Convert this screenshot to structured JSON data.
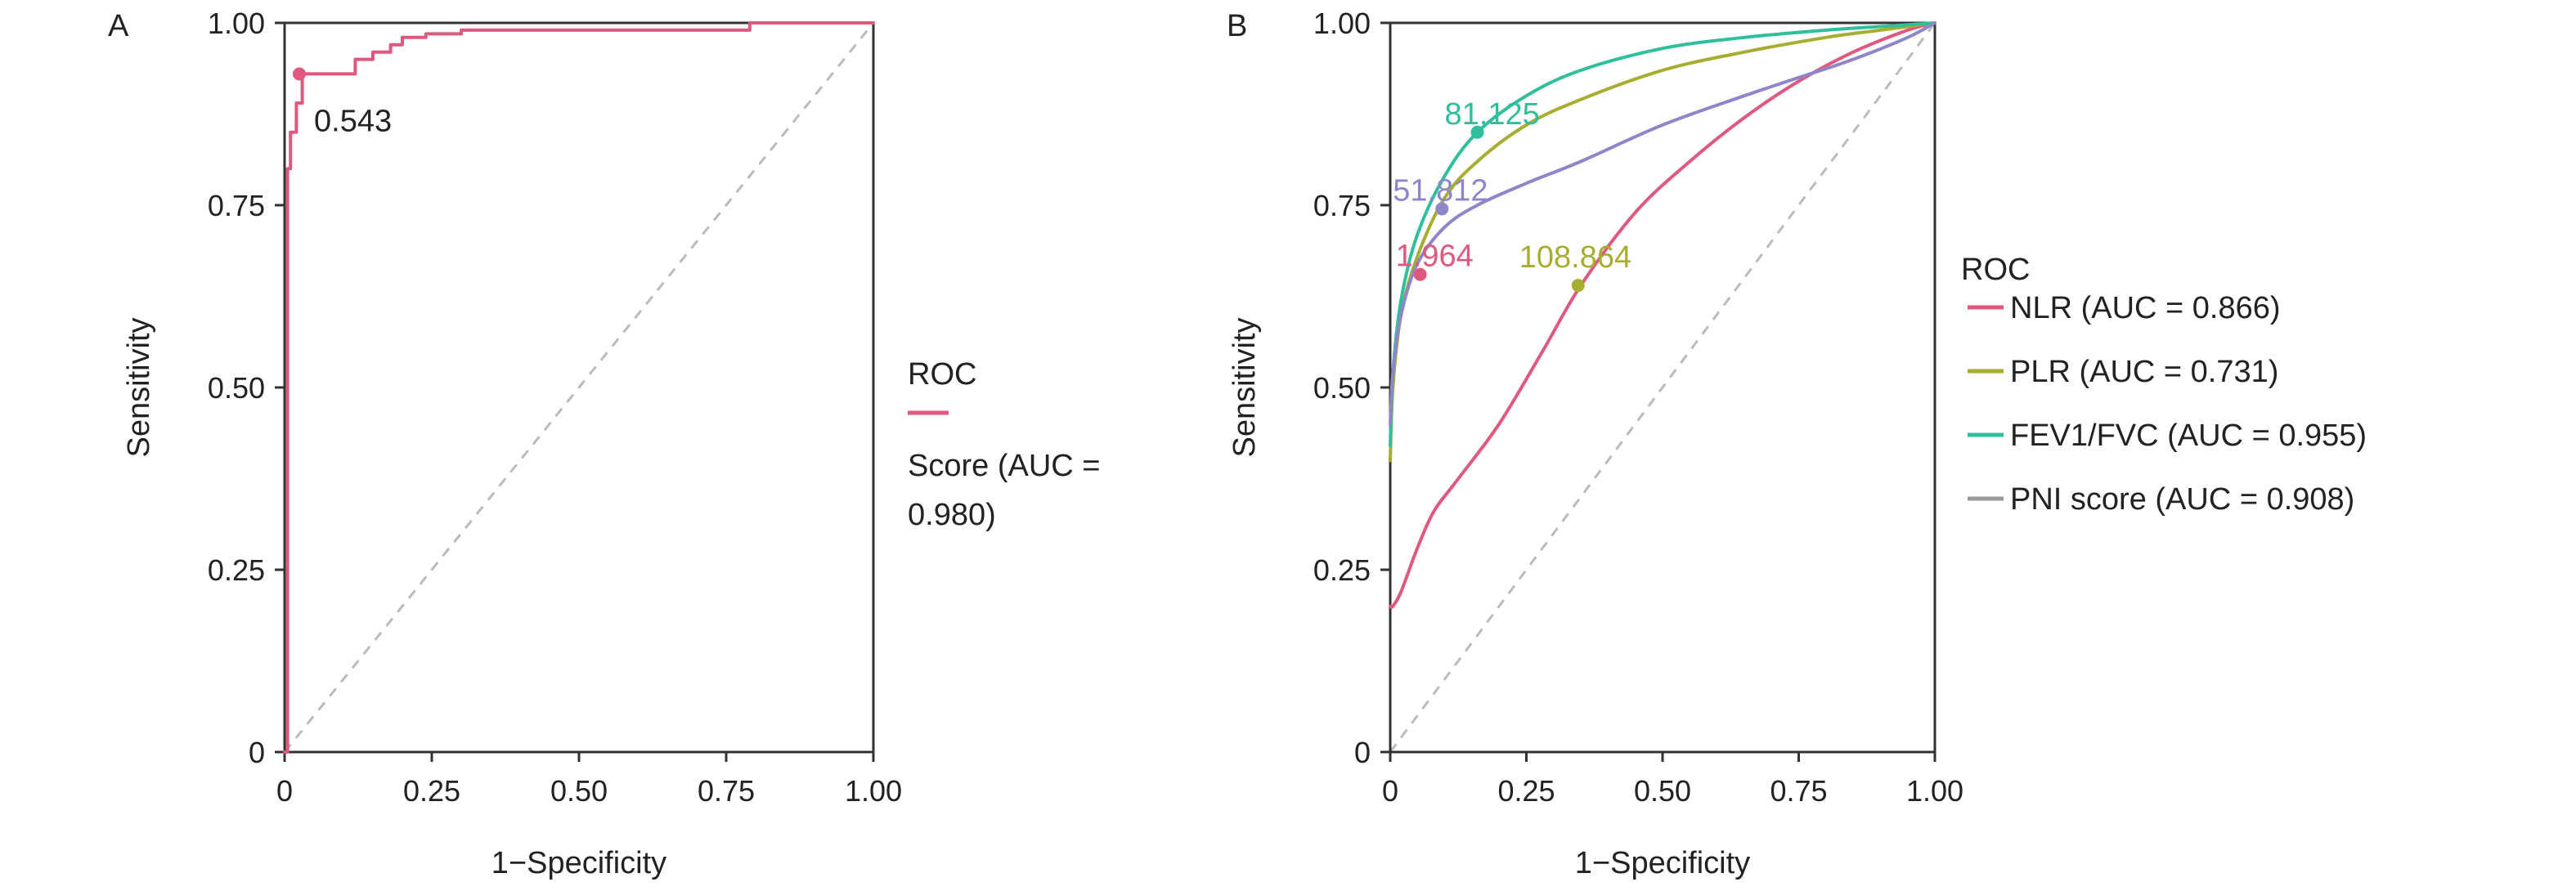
{
  "chart_data": [
    {
      "panel": "A",
      "type": "line",
      "xlabel": "1−Specificity",
      "ylabel": "Sensitivity",
      "xlim": [
        0,
        1
      ],
      "ylim": [
        0,
        1
      ],
      "x_ticks": [
        "0",
        "0.25",
        "0.50",
        "0.75",
        "1.00"
      ],
      "y_ticks": [
        "0",
        "0.25",
        "0.50",
        "0.75",
        "1.00"
      ],
      "legend": {
        "title": "ROC",
        "position": "right",
        "entries": [
          "Score (AUC =",
          "0.980)"
        ]
      },
      "diagonal": true,
      "series": [
        {
          "name": "Score (AUC = 0.980)",
          "color": "#e0587e",
          "step": true,
          "x": [
            0,
            0.005,
            0.005,
            0.01,
            0.01,
            0.02,
            0.02,
            0.03,
            0.03,
            0.12,
            0.12,
            0.15,
            0.15,
            0.18,
            0.18,
            0.2,
            0.2,
            0.24,
            0.24,
            0.3,
            0.3,
            0.79,
            0.79,
            1.0
          ],
          "y": [
            0,
            0,
            0.8,
            0.8,
            0.85,
            0.85,
            0.89,
            0.89,
            0.93,
            0.93,
            0.95,
            0.95,
            0.96,
            0.96,
            0.97,
            0.97,
            0.98,
            0.98,
            0.985,
            0.985,
            0.99,
            0.99,
            1.0,
            1.0
          ],
          "points": [
            {
              "label": "0.543",
              "x": 0.025,
              "y": 0.93,
              "label_color": "#222222"
            }
          ]
        }
      ]
    },
    {
      "panel": "B",
      "type": "line",
      "xlabel": "1−Specificity",
      "ylabel": "Sensitivity",
      "xlim": [
        0,
        1
      ],
      "ylim": [
        0,
        1
      ],
      "x_ticks": [
        "0",
        "0.25",
        "0.50",
        "0.75",
        "1.00"
      ],
      "y_ticks": [
        "0",
        "0.25",
        "0.50",
        "0.75",
        "1.00"
      ],
      "legend": {
        "title": "ROC",
        "position": "right"
      },
      "diagonal": true,
      "series": [
        {
          "name": "NLR (AUC = 0.866)",
          "color": "#e0587e",
          "x": [
            0,
            0.005,
            0.02,
            0.05,
            0.08,
            0.12,
            0.2,
            0.28,
            0.35,
            0.45,
            0.55,
            0.65,
            0.75,
            0.85,
            0.95,
            1.0
          ],
          "y": [
            0.2,
            0.2,
            0.22,
            0.28,
            0.33,
            0.37,
            0.45,
            0.55,
            0.64,
            0.74,
            0.81,
            0.87,
            0.92,
            0.96,
            0.99,
            1.0
          ],
          "points": [
            {
              "label": "1.964",
              "x": 0.055,
              "y": 0.655,
              "label_color": "#e0587e"
            }
          ]
        },
        {
          "name": "PLR (AUC = 0.731)",
          "color": "#a7ad2e",
          "x": [
            0,
            0.005,
            0.02,
            0.05,
            0.1,
            0.16,
            0.25,
            0.35,
            0.5,
            0.65,
            0.8,
            0.9,
            1.0
          ],
          "y": [
            0.4,
            0.5,
            0.6,
            0.68,
            0.76,
            0.81,
            0.86,
            0.895,
            0.935,
            0.96,
            0.98,
            0.99,
            1.0
          ],
          "points": [
            {
              "label": "108.864",
              "x": 0.345,
              "y": 0.64,
              "label_color": "#a7ad2e"
            }
          ]
        },
        {
          "name": "FEV1/FVC (AUC = 0.955)",
          "color": "#2fbf9c",
          "x": [
            0,
            0.005,
            0.02,
            0.05,
            0.1,
            0.16,
            0.25,
            0.35,
            0.5,
            0.65,
            0.8,
            0.9,
            1.0
          ],
          "y": [
            0.42,
            0.52,
            0.62,
            0.71,
            0.79,
            0.85,
            0.9,
            0.935,
            0.965,
            0.98,
            0.99,
            0.995,
            1.0
          ],
          "points": [
            {
              "label": "81.125",
              "x": 0.16,
              "y": 0.85,
              "label_color": "#2fbf9c"
            }
          ]
        },
        {
          "name": "PNI score (AUC = 0.908)",
          "color": "#8d86c9",
          "legend_color": "#999999",
          "x": [
            0,
            0.005,
            0.02,
            0.05,
            0.1,
            0.16,
            0.25,
            0.35,
            0.5,
            0.65,
            0.75,
            0.85,
            0.95,
            1.0
          ],
          "y": [
            0.45,
            0.52,
            0.6,
            0.67,
            0.72,
            0.75,
            0.78,
            0.81,
            0.86,
            0.9,
            0.925,
            0.95,
            0.98,
            1.0
          ],
          "points": [
            {
              "label": "51.812",
              "x": 0.095,
              "y": 0.745,
              "label_color": "#8d86c9"
            }
          ]
        }
      ]
    }
  ]
}
